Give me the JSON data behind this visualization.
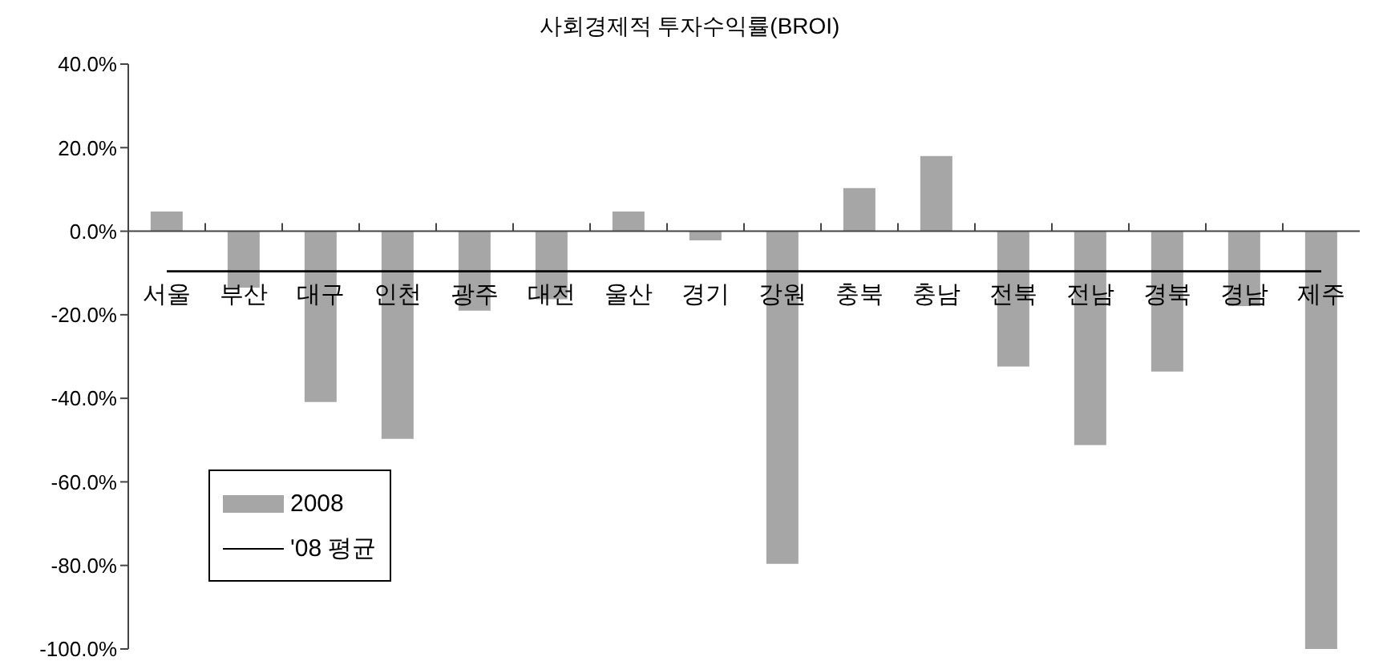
{
  "chart_data": {
    "type": "bar",
    "title": "사회경제적 투자수익률(BROI)",
    "categories": [
      "서울",
      "부산",
      "대구",
      "인천",
      "광주",
      "대전",
      "울산",
      "경기",
      "강원",
      "충북",
      "충남",
      "전북",
      "전남",
      "경북",
      "경남",
      "제주"
    ],
    "series": [
      {
        "name": "2008",
        "color": "#a6a6a6",
        "values": [
          4.7,
          -13.5,
          -40.9,
          -49.7,
          -19.0,
          -16.3,
          4.7,
          -2.2,
          -79.6,
          10.3,
          18.0,
          -32.4,
          -51.2,
          -33.6,
          -17.9,
          -100
        ]
      },
      {
        "name": "'08 평균",
        "type": "line",
        "color": "#000000",
        "values": [
          -9.6,
          -9.6,
          -9.6,
          -9.6,
          -9.6,
          -9.6,
          -9.6,
          -9.6,
          -9.6,
          -9.6,
          -9.6,
          -9.6,
          -9.6,
          -9.6,
          -9.6,
          -9.6
        ]
      }
    ],
    "ylim": [
      -100,
      40
    ],
    "yticks": [
      {
        "value": -100,
        "label": "-100.0%"
      },
      {
        "value": -80,
        "label": "-80.0%"
      },
      {
        "value": -60,
        "label": "-60.0%"
      },
      {
        "value": -40,
        "label": "-40.0%"
      },
      {
        "value": -20,
        "label": "-20.0%"
      },
      {
        "value": 0,
        "label": "0.0%"
      },
      {
        "value": 20,
        "label": "20.0%"
      },
      {
        "value": 40,
        "label": "40.0%"
      }
    ],
    "marker": "none",
    "grid": false,
    "legend": "bottom left"
  }
}
